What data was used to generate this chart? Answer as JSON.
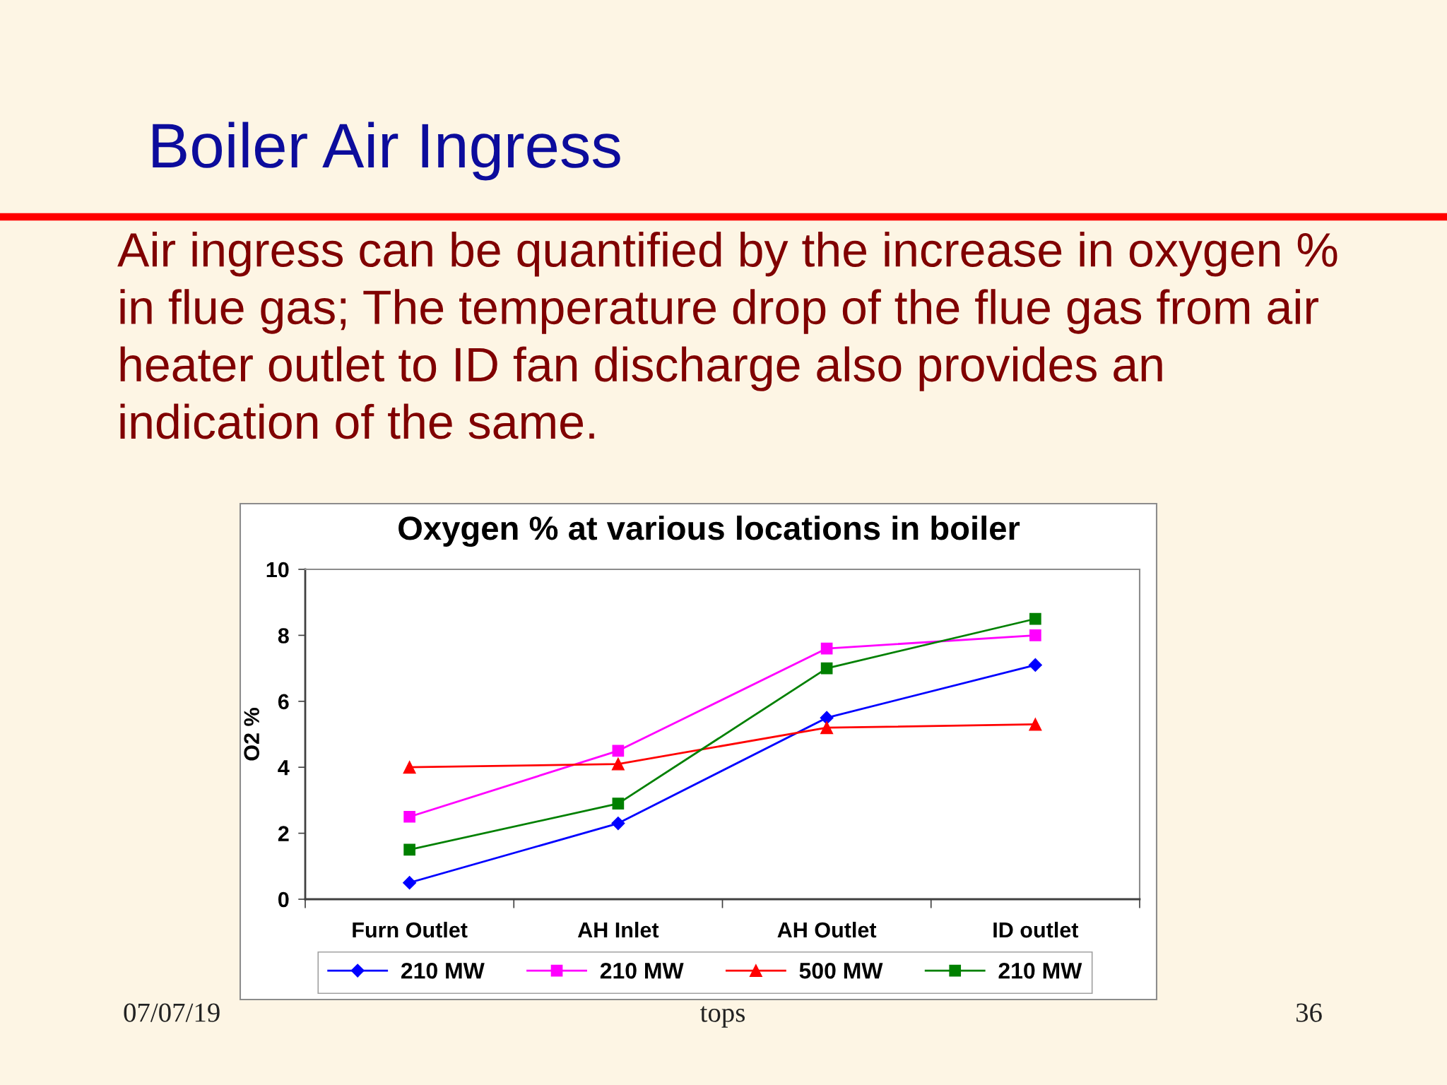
{
  "chart_data": {
    "type": "line",
    "title": "Boiler Air Ingress",
    "subtitle": "Air ingress can be quantified by the increase in oxygen % in flue gas; The temperature drop of the flue gas from air heater outlet to ID fan discharge also provides an indication of the same.",
    "ylabel": "O2 %",
    "annotations": [
      "Oxygen % at various locations in boiler",
      "07/07/19",
      "tops",
      "36"
    ],
    "categories": [
      "Furn Outlet",
      "AH Inlet",
      "AH Outlet",
      "ID outlet"
    ],
    "series": [
      {
        "name": "210 MW",
        "color": "#0000ff",
        "marker": "diamond",
        "values": [
          0.5,
          2.3,
          5.5,
          7.1
        ]
      },
      {
        "name": "210 MW",
        "color": "#ff00ff",
        "marker": "square",
        "values": [
          2.5,
          4.5,
          7.6,
          8.0
        ]
      },
      {
        "name": "500 MW",
        "color": "#ff0000",
        "marker": "triangle",
        "values": [
          4.0,
          4.1,
          5.2,
          5.3
        ]
      },
      {
        "name": "210 MW",
        "color": "#008000",
        "marker": "square",
        "values": [
          1.5,
          2.9,
          7.0,
          8.5
        ]
      }
    ],
    "ylim": [
      0,
      10
    ],
    "yticks": [
      0,
      2,
      4,
      6,
      8,
      10
    ],
    "legend": "bottom"
  }
}
